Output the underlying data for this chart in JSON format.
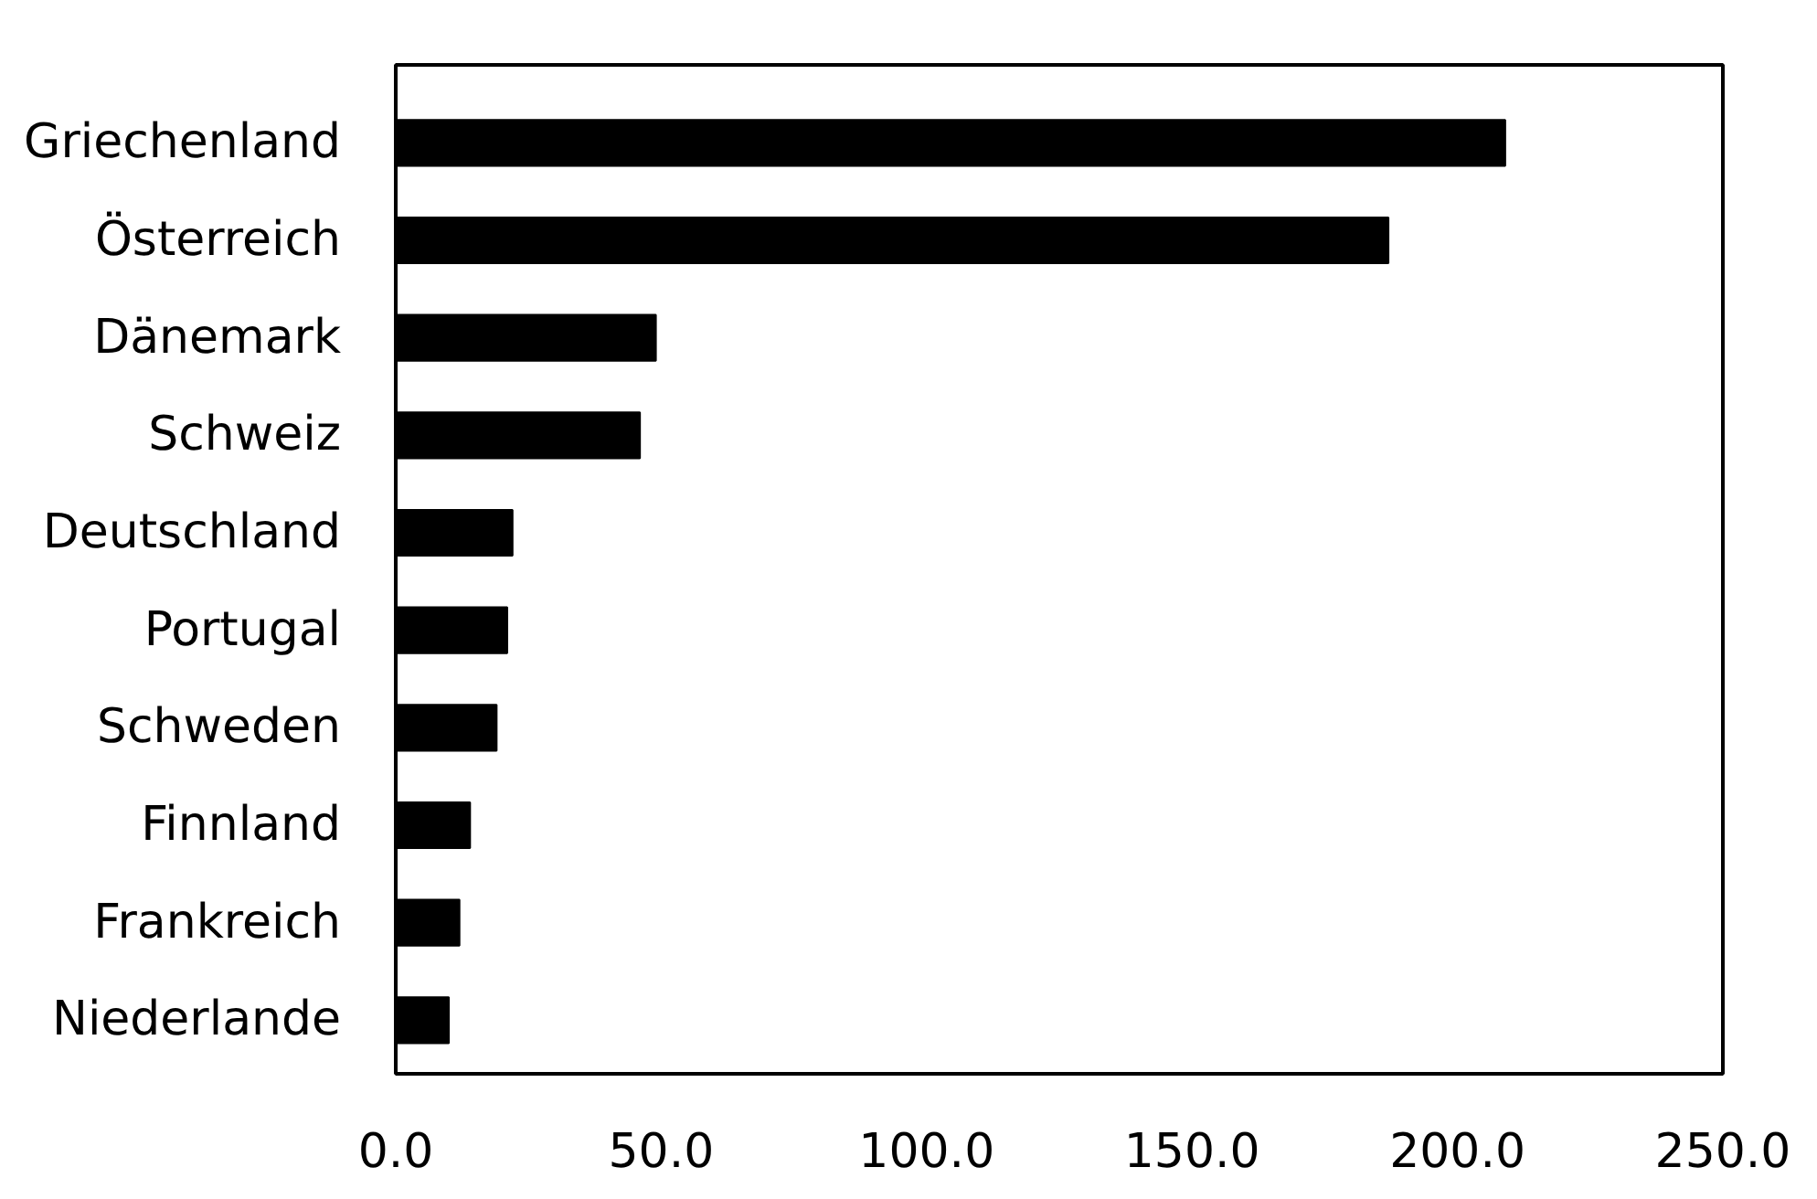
{
  "chart_data": {
    "type": "bar",
    "orientation": "horizontal",
    "categories": [
      "Griechenland",
      "Österreich",
      "Dänemark",
      "Schweiz",
      "Deutschland",
      "Portugal",
      "Schweden",
      "Finnland",
      "Frankreich",
      "Niederlande"
    ],
    "values": [
      209,
      187,
      49,
      46,
      22,
      21,
      19,
      14,
      12,
      10
    ],
    "color": "#000000",
    "xlim": [
      0,
      250
    ],
    "xticks": [
      {
        "value": 0,
        "label": "0.0"
      },
      {
        "value": 50,
        "label": "50.0"
      },
      {
        "value": 100,
        "label": "100.0"
      },
      {
        "value": 150,
        "label": "150.0"
      },
      {
        "value": 200,
        "label": "200.0"
      },
      {
        "value": 250,
        "label": "250.0"
      }
    ],
    "grid": false
  }
}
